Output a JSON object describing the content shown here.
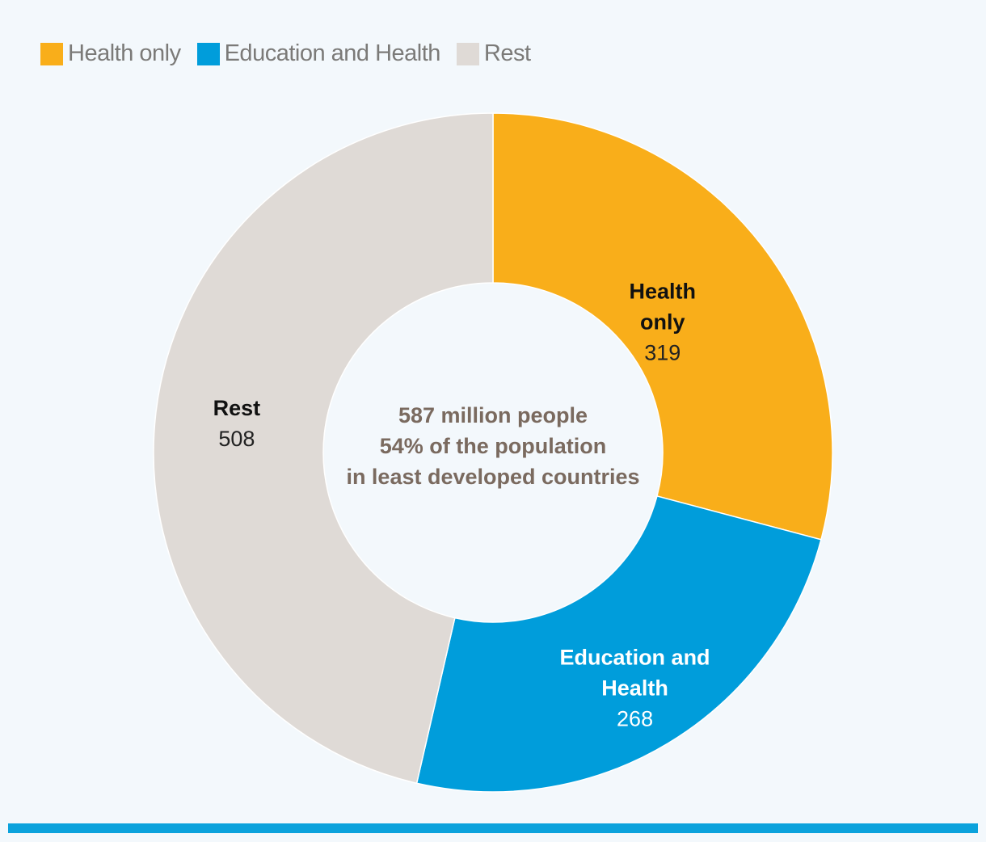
{
  "chart_data": {
    "type": "pie",
    "variant": "donut",
    "categories": [
      "Health only",
      "Education and Health",
      "Rest"
    ],
    "values": [
      319,
      268,
      508
    ],
    "colors": [
      "#f9ae1a",
      "#009ddb",
      "#dfdad6"
    ],
    "legend": "top-left",
    "slice_labels": [
      {
        "lines": [
          "Health",
          "only"
        ],
        "value": "319"
      },
      {
        "lines": [
          "Education and",
          "Health"
        ],
        "value": "268"
      },
      {
        "lines": [
          "Rest"
        ],
        "value": "508"
      }
    ],
    "center_text": [
      "587 million people",
      "54% of the population",
      "in least developed countries"
    ]
  },
  "legend_items": [
    {
      "label": "Health only",
      "color": "#f9ae1a"
    },
    {
      "label": "Education and Health",
      "color": "#009ddb"
    },
    {
      "label": "Rest",
      "color": "#dfdad6"
    }
  ]
}
